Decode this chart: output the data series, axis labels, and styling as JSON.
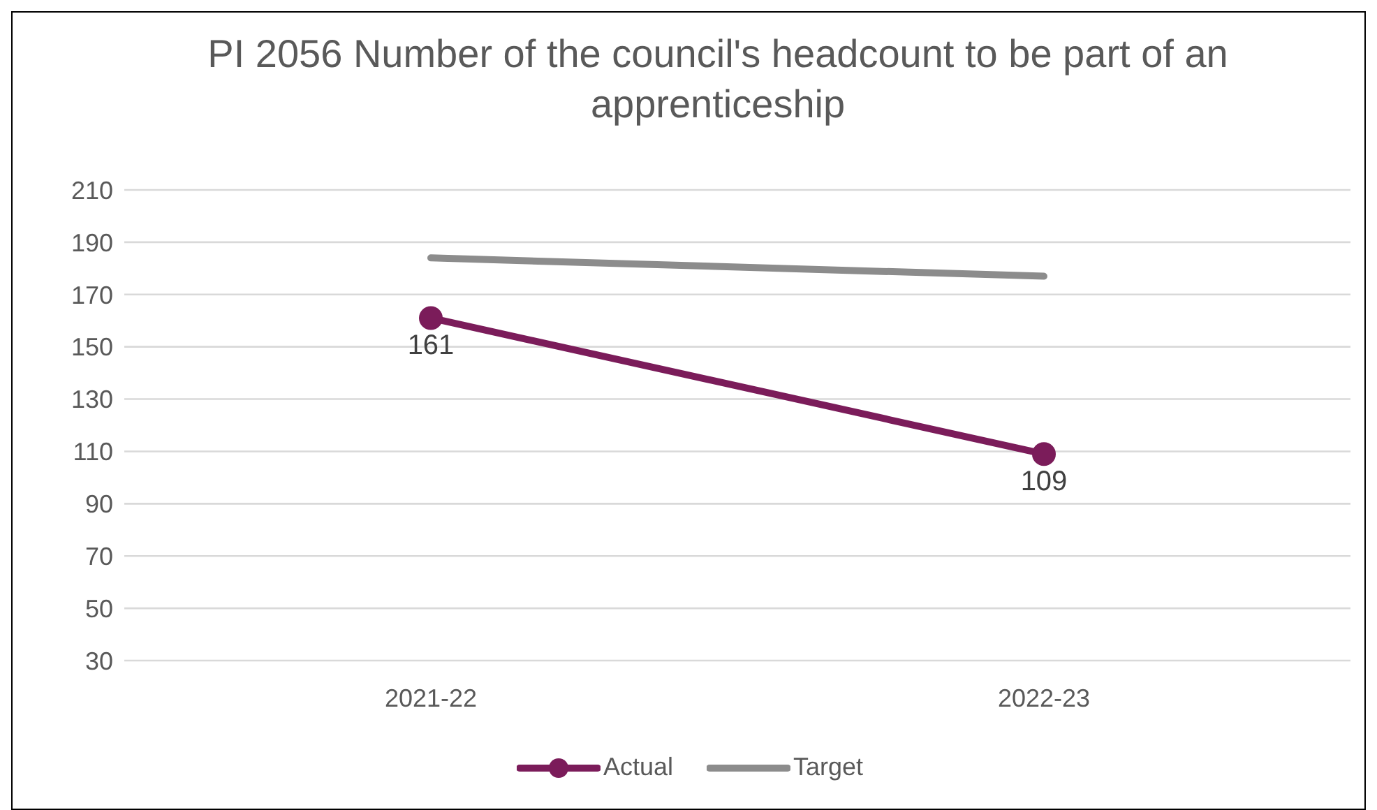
{
  "chart_data": {
    "type": "line",
    "title": "PI 2056 Number of the council's headcount to be part of an apprenticeship",
    "categories": [
      "2021-22",
      "2022-23"
    ],
    "series": [
      {
        "name": "Actual",
        "color": "#7b1c5a",
        "values": [
          161,
          109
        ],
        "marker": "circle",
        "value_labels": [
          "161",
          "109"
        ]
      },
      {
        "name": "Target",
        "color": "#8c8c8c",
        "values": [
          184,
          177
        ],
        "marker": "none"
      }
    ],
    "ylim": [
      30,
      210
    ],
    "yticks": [
      30,
      50,
      70,
      90,
      110,
      130,
      150,
      170,
      190,
      210
    ],
    "grid": "y",
    "legend": "bottom"
  }
}
